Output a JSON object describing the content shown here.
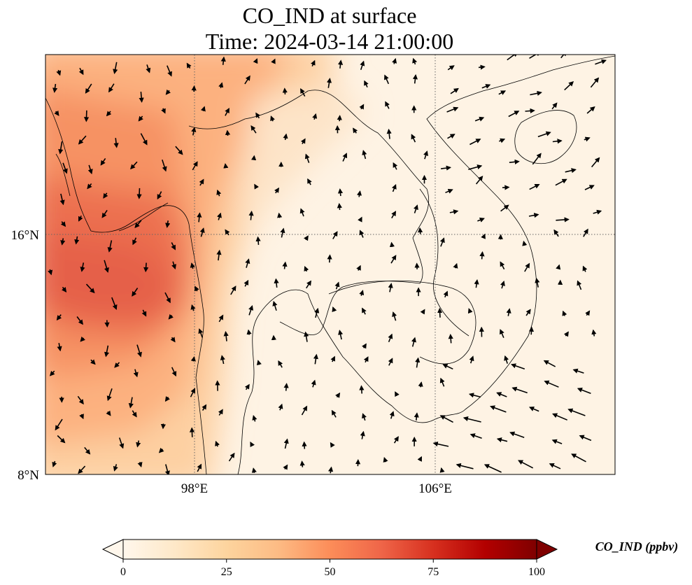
{
  "title": {
    "line1": "CO_IND at surface",
    "line2": "Time: 2024-03-14 21:00:00"
  },
  "map": {
    "variable": "CO_IND",
    "level": "surface",
    "lon_range_deg": [
      93,
      112
    ],
    "lat_range_deg": [
      8,
      22
    ],
    "projection": "PlateCarree",
    "gridlines": true,
    "lon_ticks": [
      {
        "value": 98,
        "label": "98°E"
      },
      {
        "value": 106,
        "label": "106°E"
      }
    ],
    "lat_ticks": [
      {
        "value": 8,
        "label": "8°N"
      },
      {
        "value": 16,
        "label": "16°N"
      }
    ],
    "overlay": "wind vectors",
    "coastlines": true,
    "borders": true
  },
  "colorbar": {
    "label": "CO_IND (ppbv)",
    "min": 0,
    "max": 100,
    "ticks": [
      "0",
      "25",
      "50",
      "75",
      "100"
    ],
    "extend": "both",
    "colormap": "OrRd",
    "colors": [
      "#fff7ec",
      "#fee8c8",
      "#fdd49e",
      "#fdbb84",
      "#fc8d59",
      "#ef6548",
      "#d7301f",
      "#b30000",
      "#7f0000"
    ]
  }
}
